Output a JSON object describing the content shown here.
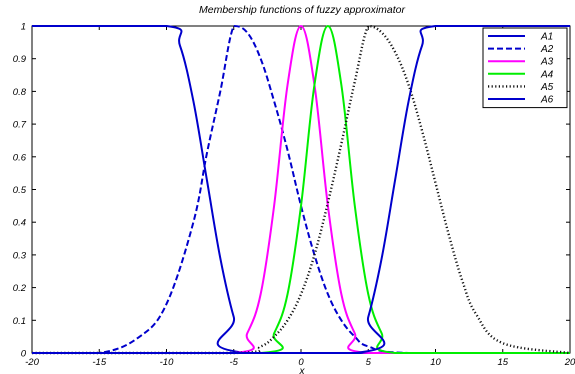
{
  "chart_data": {
    "type": "line",
    "title": "Membership functions of fuzzy approximator",
    "xlabel": "x",
    "ylabel": "",
    "xlim": [
      -20,
      20
    ],
    "ylim": [
      0,
      1
    ],
    "xticks": [
      "-20",
      "-15",
      "-10",
      "-5",
      "0",
      "5",
      "10",
      "15",
      "20"
    ],
    "yticks": [
      "0",
      "0.1",
      "0.2",
      "0.3",
      "0.4",
      "0.5",
      "0.6",
      "0.7",
      "0.8",
      "0.9",
      "1"
    ],
    "grid": false,
    "legend_position": "top-right",
    "series": [
      {
        "name": "A1",
        "color": "#0000cc",
        "style": "solid",
        "x": [
          -20,
          -10,
          -9,
          -8,
          -7,
          -6,
          -5,
          -4,
          20
        ],
        "y": [
          1,
          1,
          0.94,
          0.77,
          0.53,
          0.29,
          0.11,
          0,
          0
        ]
      },
      {
        "name": "A2",
        "color": "#0000cc",
        "style": "dashed",
        "x": [
          -20,
          -15,
          -12,
          -10,
          -8,
          -7,
          -6,
          -5,
          -4,
          -3,
          -2,
          -1,
          0,
          1,
          2,
          3,
          4,
          5,
          8,
          20
        ],
        "y": [
          0,
          0,
          0.05,
          0.15,
          0.4,
          0.61,
          0.8,
          1,
          0.98,
          0.9,
          0.77,
          0.62,
          0.45,
          0.3,
          0.18,
          0.1,
          0.05,
          0.02,
          0,
          0
        ]
      },
      {
        "name": "A3",
        "color": "#ff00ff",
        "style": "solid",
        "x": [
          -20,
          -5,
          -4,
          -3,
          -2,
          -1,
          0,
          1,
          2,
          3,
          4,
          5,
          20
        ],
        "y": [
          0,
          0,
          0.06,
          0.18,
          0.45,
          0.82,
          1,
          0.82,
          0.45,
          0.18,
          0.06,
          0,
          0
        ]
      },
      {
        "name": "A4",
        "color": "#00ee00",
        "style": "solid",
        "x": [
          -20,
          -3,
          -2,
          -1,
          0,
          1,
          2,
          3,
          4,
          5,
          6,
          7,
          20
        ],
        "y": [
          0,
          0,
          0.06,
          0.18,
          0.45,
          0.82,
          1,
          0.82,
          0.45,
          0.18,
          0.06,
          0,
          0
        ]
      },
      {
        "name": "A5",
        "color": "#111111",
        "style": "dotted",
        "x": [
          -20,
          -5,
          -3,
          -2,
          -1,
          0,
          1,
          2,
          3,
          4,
          5,
          6,
          7,
          8,
          9,
          10,
          11,
          12,
          13,
          15,
          20
        ],
        "y": [
          0,
          0,
          0.02,
          0.05,
          0.1,
          0.18,
          0.3,
          0.46,
          0.64,
          0.83,
          1,
          0.98,
          0.92,
          0.82,
          0.68,
          0.52,
          0.36,
          0.22,
          0.12,
          0.03,
          0
        ]
      },
      {
        "name": "A6",
        "color": "#0000cc",
        "style": "solid",
        "x": [
          -20,
          4,
          5,
          6,
          7,
          8,
          9,
          10,
          20
        ],
        "y": [
          0,
          0,
          0.11,
          0.29,
          0.53,
          0.77,
          0.94,
          1,
          1
        ]
      }
    ]
  }
}
